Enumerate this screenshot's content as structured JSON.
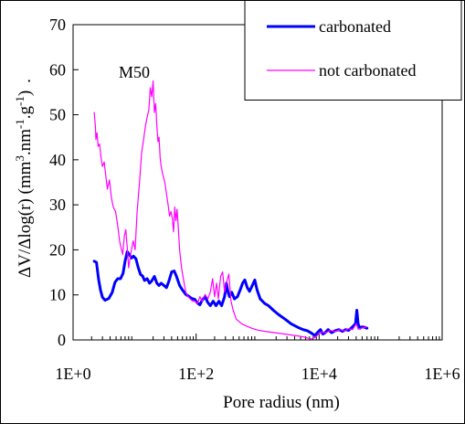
{
  "chart_data": {
    "type": "line",
    "title": "",
    "panel_label": "M50",
    "xlabel": "Pore radius (nm)",
    "ylabel_parts": {
      "pre": "ΔV/Δlog(r) (mm",
      "sup1": "3",
      "mid1": ".nm",
      "sup2": "-1",
      "mid2": ".g",
      "sup3": "-1",
      "post": ")",
      "trail": "."
    },
    "x_scale": "log",
    "xlim": [
      1,
      1000000
    ],
    "ylim": [
      0,
      70
    ],
    "x_ticks": [
      {
        "value": 1,
        "label": "1E+0"
      },
      {
        "value": 100,
        "label": "1E+2"
      },
      {
        "value": 10000,
        "label": "1E+4"
      },
      {
        "value": 1000000,
        "label": "1E+6"
      }
    ],
    "y_ticks": [
      0,
      10,
      20,
      30,
      40,
      50,
      60,
      70
    ],
    "grid": false,
    "legend_position": "top-right",
    "series": [
      {
        "name": "carbonated",
        "color": "#0000ff",
        "line_width": 3,
        "points": [
          [
            2.2,
            17.5
          ],
          [
            2.4,
            17.2
          ],
          [
            2.6,
            13.5
          ],
          [
            2.8,
            11.0
          ],
          [
            3.0,
            9.5
          ],
          [
            3.3,
            8.8
          ],
          [
            3.8,
            9.2
          ],
          [
            4.3,
            10.5
          ],
          [
            4.8,
            12.8
          ],
          [
            5.3,
            13.6
          ],
          [
            5.9,
            13.6
          ],
          [
            6.5,
            14.8
          ],
          [
            7.0,
            17.5
          ],
          [
            7.6,
            19.6
          ],
          [
            8.2,
            19.0
          ],
          [
            8.9,
            18.2
          ],
          [
            9.6,
            18.6
          ],
          [
            10.5,
            18.0
          ],
          [
            11.5,
            16.0
          ],
          [
            12.5,
            14.5
          ],
          [
            13.5,
            14.2
          ],
          [
            14.5,
            13.2
          ],
          [
            16,
            13.6
          ],
          [
            17.5,
            12.6
          ],
          [
            19,
            13.1
          ],
          [
            21,
            14.1
          ],
          [
            23,
            12.6
          ],
          [
            25,
            12.1
          ],
          [
            27,
            12.6
          ],
          [
            30,
            12.1
          ],
          [
            33,
            11.6
          ],
          [
            36,
            13.0
          ],
          [
            40,
            15.1
          ],
          [
            44,
            15.3
          ],
          [
            48,
            14.1
          ],
          [
            54,
            12.1
          ],
          [
            60,
            11.1
          ],
          [
            68,
            10.1
          ],
          [
            76,
            9.7
          ],
          [
            85,
            9.2
          ],
          [
            95,
            9.0
          ],
          [
            105,
            8.2
          ],
          [
            115,
            7.8
          ],
          [
            125,
            8.8
          ],
          [
            140,
            9.6
          ],
          [
            155,
            8.3
          ],
          [
            170,
            7.6
          ],
          [
            190,
            8.6
          ],
          [
            210,
            7.6
          ],
          [
            235,
            8.6
          ],
          [
            260,
            7.6
          ],
          [
            290,
            9.6
          ],
          [
            310,
            12.6
          ],
          [
            330,
            10.6
          ],
          [
            350,
            9.6
          ],
          [
            380,
            10.6
          ],
          [
            420,
            9.1
          ],
          [
            470,
            9.6
          ],
          [
            520,
            11.1
          ],
          [
            570,
            12.6
          ],
          [
            620,
            13.3
          ],
          [
            680,
            11.6
          ],
          [
            740,
            10.8
          ],
          [
            820,
            12.1
          ],
          [
            900,
            13.3
          ],
          [
            980,
            11.1
          ],
          [
            1100,
            9.1
          ],
          [
            1300,
            8.1
          ],
          [
            1500,
            7.6
          ],
          [
            1800,
            6.6
          ],
          [
            2200,
            5.6
          ],
          [
            2800,
            4.6
          ],
          [
            3500,
            3.6
          ],
          [
            4500,
            2.8
          ],
          [
            5500,
            2.3
          ],
          [
            6500,
            2.0
          ],
          [
            7500,
            1.5
          ],
          [
            8500,
            1.0
          ],
          [
            9500,
            1.7
          ],
          [
            10500,
            2.3
          ],
          [
            11500,
            1.3
          ],
          [
            12500,
            1.6
          ],
          [
            14000,
            2.3
          ],
          [
            16000,
            1.6
          ],
          [
            18000,
            2.0
          ],
          [
            21000,
            2.3
          ],
          [
            24000,
            1.9
          ],
          [
            27000,
            2.3
          ],
          [
            30000,
            2.1
          ],
          [
            33000,
            2.6
          ],
          [
            36000,
            3.1
          ],
          [
            39000,
            3.6
          ],
          [
            41000,
            6.6
          ],
          [
            43000,
            3.6
          ],
          [
            46000,
            2.6
          ],
          [
            50000,
            2.9
          ],
          [
            55000,
            2.8
          ],
          [
            60000,
            2.6
          ]
        ]
      },
      {
        "name": "not carbonated",
        "color": "#ff00ff",
        "line_width": 1.2,
        "points": [
          [
            2.2,
            50.5
          ],
          [
            2.3,
            47.5
          ],
          [
            2.35,
            44.5
          ],
          [
            2.45,
            46.0
          ],
          [
            2.55,
            43.0
          ],
          [
            2.7,
            43.5
          ],
          [
            2.85,
            40.5
          ],
          [
            3.0,
            38.5
          ],
          [
            3.2,
            39.5
          ],
          [
            3.4,
            36.5
          ],
          [
            3.6,
            33.5
          ],
          [
            3.9,
            35.5
          ],
          [
            4.2,
            31.5
          ],
          [
            4.5,
            29.5
          ],
          [
            4.9,
            28.5
          ],
          [
            5.3,
            25.5
          ],
          [
            5.7,
            22.0
          ],
          [
            6.0,
            20.5
          ],
          [
            6.4,
            19.0
          ],
          [
            6.8,
            23.0
          ],
          [
            7.2,
            24.5
          ],
          [
            7.6,
            20.5
          ],
          [
            8.0,
            16.0
          ],
          [
            8.5,
            18.5
          ],
          [
            9.0,
            20.5
          ],
          [
            9.5,
            22.0
          ],
          [
            10.2,
            20.0
          ],
          [
            11,
            28.5
          ],
          [
            12,
            35.0
          ],
          [
            13,
            41.5
          ],
          [
            14,
            44.5
          ],
          [
            15,
            47.5
          ],
          [
            16,
            49.5
          ],
          [
            17,
            51.0
          ],
          [
            18,
            56.0
          ],
          [
            19,
            54.0
          ],
          [
            20,
            57.5
          ],
          [
            21,
            50.5
          ],
          [
            22,
            52.5
          ],
          [
            23,
            47.5
          ],
          [
            24,
            44.0
          ],
          [
            25,
            45.0
          ],
          [
            26,
            40.5
          ],
          [
            27,
            38.5
          ],
          [
            29,
            36.5
          ],
          [
            31,
            35.0
          ],
          [
            33,
            32.5
          ],
          [
            35,
            30.0
          ],
          [
            37,
            27.5
          ],
          [
            39,
            28.5
          ],
          [
            41,
            27.0
          ],
          [
            43,
            24.0
          ],
          [
            45,
            29.5
          ],
          [
            47,
            26.5
          ],
          [
            49,
            29.0
          ],
          [
            51,
            25.5
          ],
          [
            54,
            20.0
          ],
          [
            58,
            16.0
          ],
          [
            63,
            13.0
          ],
          [
            68,
            10.6
          ],
          [
            74,
            9.6
          ],
          [
            80,
            9.1
          ],
          [
            88,
            8.6
          ],
          [
            96,
            8.6
          ],
          [
            105,
            8.1
          ],
          [
            115,
            9.6
          ],
          [
            125,
            8.6
          ],
          [
            140,
            10.1
          ],
          [
            155,
            9.1
          ],
          [
            170,
            10.6
          ],
          [
            185,
            13.6
          ],
          [
            200,
            9.6
          ],
          [
            215,
            12.6
          ],
          [
            230,
            9.1
          ],
          [
            250,
            14.1
          ],
          [
            270,
            15.1
          ],
          [
            290,
            10.6
          ],
          [
            310,
            12.6
          ],
          [
            340,
            14.6
          ],
          [
            370,
            8.6
          ],
          [
            400,
            6.6
          ],
          [
            450,
            4.6
          ],
          [
            500,
            4.1
          ],
          [
            550,
            3.6
          ],
          [
            650,
            3.1
          ],
          [
            800,
            2.6
          ],
          [
            1000,
            2.2
          ],
          [
            1300,
            1.9
          ],
          [
            1700,
            1.7
          ],
          [
            2200,
            1.5
          ],
          [
            2800,
            1.3
          ],
          [
            3500,
            1.1
          ],
          [
            4500,
            0.9
          ],
          [
            5500,
            0.7
          ],
          [
            6500,
            0.4
          ],
          [
            7500,
            0.2
          ],
          [
            8500,
            0.5
          ],
          [
            9500,
            1.1
          ],
          [
            11000,
            1.8
          ],
          [
            13000,
            1.6
          ],
          [
            15000,
            2.1
          ],
          [
            18000,
            1.9
          ],
          [
            22000,
            2.3
          ],
          [
            26000,
            2.0
          ],
          [
            30000,
            2.5
          ],
          [
            35000,
            2.3
          ],
          [
            40000,
            3.6
          ],
          [
            43000,
            2.4
          ],
          [
            48000,
            2.6
          ],
          [
            55000,
            2.8
          ],
          [
            60000,
            2.9
          ]
        ]
      }
    ]
  }
}
